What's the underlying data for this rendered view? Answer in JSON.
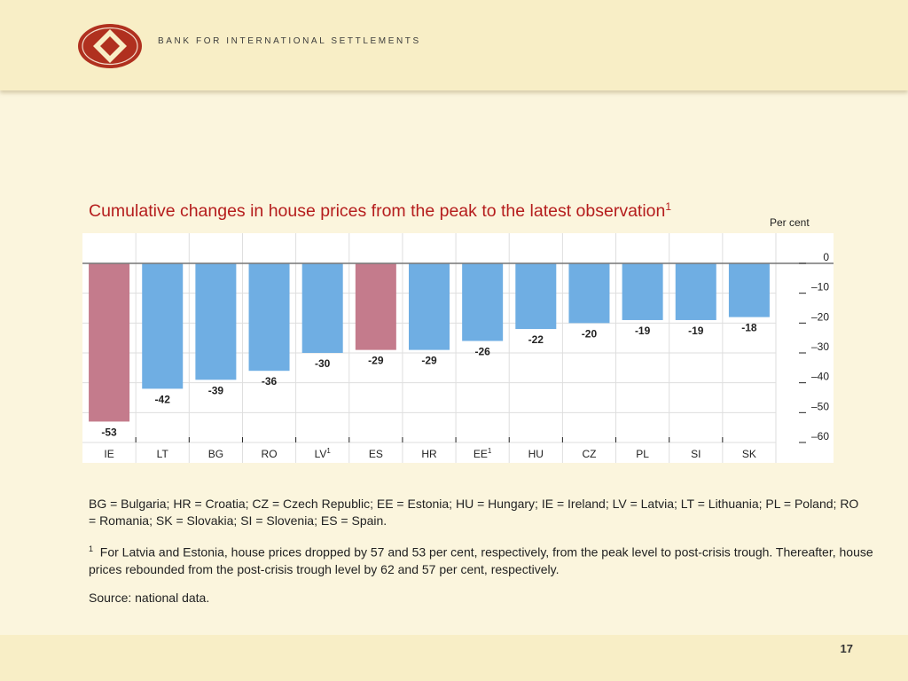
{
  "header": {
    "org_name": "BANK FOR INTERNATIONAL SETTLEMENTS"
  },
  "slide": {
    "title": "Cumulative changes in house prices from the peak to the latest observation",
    "title_footnote_marker": "1",
    "unit": "Per cent",
    "legend_note": "BG = Bulgaria; HR = Croatia; CZ = Czech Republic; EE = Estonia; HU = Hungary; IE = Ireland; LV = Latvia; LT = Lithuania; PL = Poland; RO = Romania; SK = Slovakia; SI = Slovenia; ES = Spain.",
    "footnote_marker": "1",
    "footnote": "For Latvia and Estonia, house prices dropped by 57 and 53 per cent, respectively, from the peak level to post-crisis trough. Thereafter, house prices rebounded from the post-crisis trough level by 62 and 57 per cent, respectively.",
    "source": "Source: national data.",
    "page_number": "17"
  },
  "colors": {
    "highlight_bar": "#c47b8c",
    "default_bar": "#6faee3",
    "title": "#b51d1d",
    "background": "#fbf5dd"
  },
  "chart_data": {
    "type": "bar",
    "categories": [
      "IE",
      "LT",
      "BG",
      "RO",
      "LV",
      "ES",
      "HR",
      "EE",
      "HU",
      "CZ",
      "PL",
      "SI",
      "SK"
    ],
    "category_superscripts": [
      "",
      "",
      "",
      "",
      "1",
      "",
      "",
      "1",
      "",
      "",
      "",
      "",
      ""
    ],
    "values": [
      -53,
      -42,
      -39,
      -36,
      -30,
      -29,
      -29,
      -26,
      -22,
      -20,
      -19,
      -19,
      -18
    ],
    "value_labels": [
      "-53",
      "-42",
      "-39",
      "-36",
      "-30",
      "-29",
      "-29",
      "-26",
      "-22",
      "-20",
      "-19",
      "-19",
      "-18"
    ],
    "highlighted": [
      "IE",
      "ES"
    ],
    "ylim": [
      -60,
      0
    ],
    "yticks": [
      0,
      -10,
      -20,
      -30,
      -40,
      -50,
      -60
    ],
    "ytick_labels": [
      "0",
      "–10",
      "–20",
      "–30",
      "–40",
      "–50",
      "–60"
    ],
    "y_axis_side": "right",
    "grid": true
  }
}
